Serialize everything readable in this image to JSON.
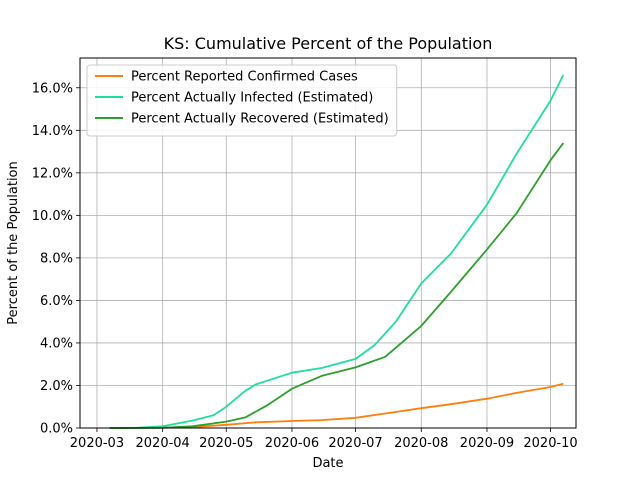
{
  "chart_data": {
    "type": "line",
    "title": "KS: Cumulative Percent of the Population",
    "xlabel": "Date",
    "ylabel": "Percent of the Population",
    "x_ticks": [
      "2020-03",
      "2020-04",
      "2020-05",
      "2020-06",
      "2020-07",
      "2020-08",
      "2020-09",
      "2020-10"
    ],
    "y_ticks": [
      "0.0%",
      "2.0%",
      "4.0%",
      "6.0%",
      "8.0%",
      "10.0%",
      "12.0%",
      "14.0%",
      "16.0%"
    ],
    "xlim": [
      "2020-02-22",
      "2020-10-13"
    ],
    "ylim": [
      0,
      17.4
    ],
    "grid": true,
    "legend_position": "upper-left",
    "series": [
      {
        "name": "Percent Reported Confirmed Cases",
        "color": "#ff7f0e",
        "points": [
          [
            "2020-03-07",
            0.0
          ],
          [
            "2020-04-01",
            0.02
          ],
          [
            "2020-04-15",
            0.04
          ],
          [
            "2020-05-01",
            0.15
          ],
          [
            "2020-05-15",
            0.27
          ],
          [
            "2020-06-01",
            0.33
          ],
          [
            "2020-06-15",
            0.37
          ],
          [
            "2020-07-01",
            0.48
          ],
          [
            "2020-07-15",
            0.68
          ],
          [
            "2020-08-01",
            0.93
          ],
          [
            "2020-08-15",
            1.12
          ],
          [
            "2020-09-01",
            1.38
          ],
          [
            "2020-09-15",
            1.65
          ],
          [
            "2020-10-01",
            1.93
          ],
          [
            "2020-10-07",
            2.08
          ]
        ]
      },
      {
        "name": "Percent Actually Infected (Estimated)",
        "color": "#1fdf9a",
        "points": [
          [
            "2020-03-07",
            0.0
          ],
          [
            "2020-03-20",
            0.01
          ],
          [
            "2020-04-01",
            0.08
          ],
          [
            "2020-04-15",
            0.35
          ],
          [
            "2020-04-25",
            0.6
          ],
          [
            "2020-05-01",
            1.0
          ],
          [
            "2020-05-10",
            1.75
          ],
          [
            "2020-05-15",
            2.05
          ],
          [
            "2020-06-01",
            2.6
          ],
          [
            "2020-06-15",
            2.82
          ],
          [
            "2020-07-01",
            3.25
          ],
          [
            "2020-07-10",
            3.9
          ],
          [
            "2020-07-20",
            5.0
          ],
          [
            "2020-08-01",
            6.8
          ],
          [
            "2020-08-15",
            8.2
          ],
          [
            "2020-09-01",
            10.5
          ],
          [
            "2020-09-15",
            12.9
          ],
          [
            "2020-10-01",
            15.4
          ],
          [
            "2020-10-07",
            16.6
          ]
        ]
      },
      {
        "name": "Percent Actually Recovered (Estimated)",
        "color": "#2ca02c",
        "points": [
          [
            "2020-03-07",
            0.0
          ],
          [
            "2020-04-01",
            0.01
          ],
          [
            "2020-04-15",
            0.08
          ],
          [
            "2020-05-01",
            0.3
          ],
          [
            "2020-05-10",
            0.5
          ],
          [
            "2020-05-20",
            1.05
          ],
          [
            "2020-06-01",
            1.85
          ],
          [
            "2020-06-15",
            2.45
          ],
          [
            "2020-07-01",
            2.85
          ],
          [
            "2020-07-15",
            3.35
          ],
          [
            "2020-08-01",
            4.8
          ],
          [
            "2020-08-15",
            6.4
          ],
          [
            "2020-09-01",
            8.4
          ],
          [
            "2020-09-15",
            10.1
          ],
          [
            "2020-10-01",
            12.6
          ],
          [
            "2020-10-07",
            13.4
          ]
        ]
      }
    ]
  }
}
